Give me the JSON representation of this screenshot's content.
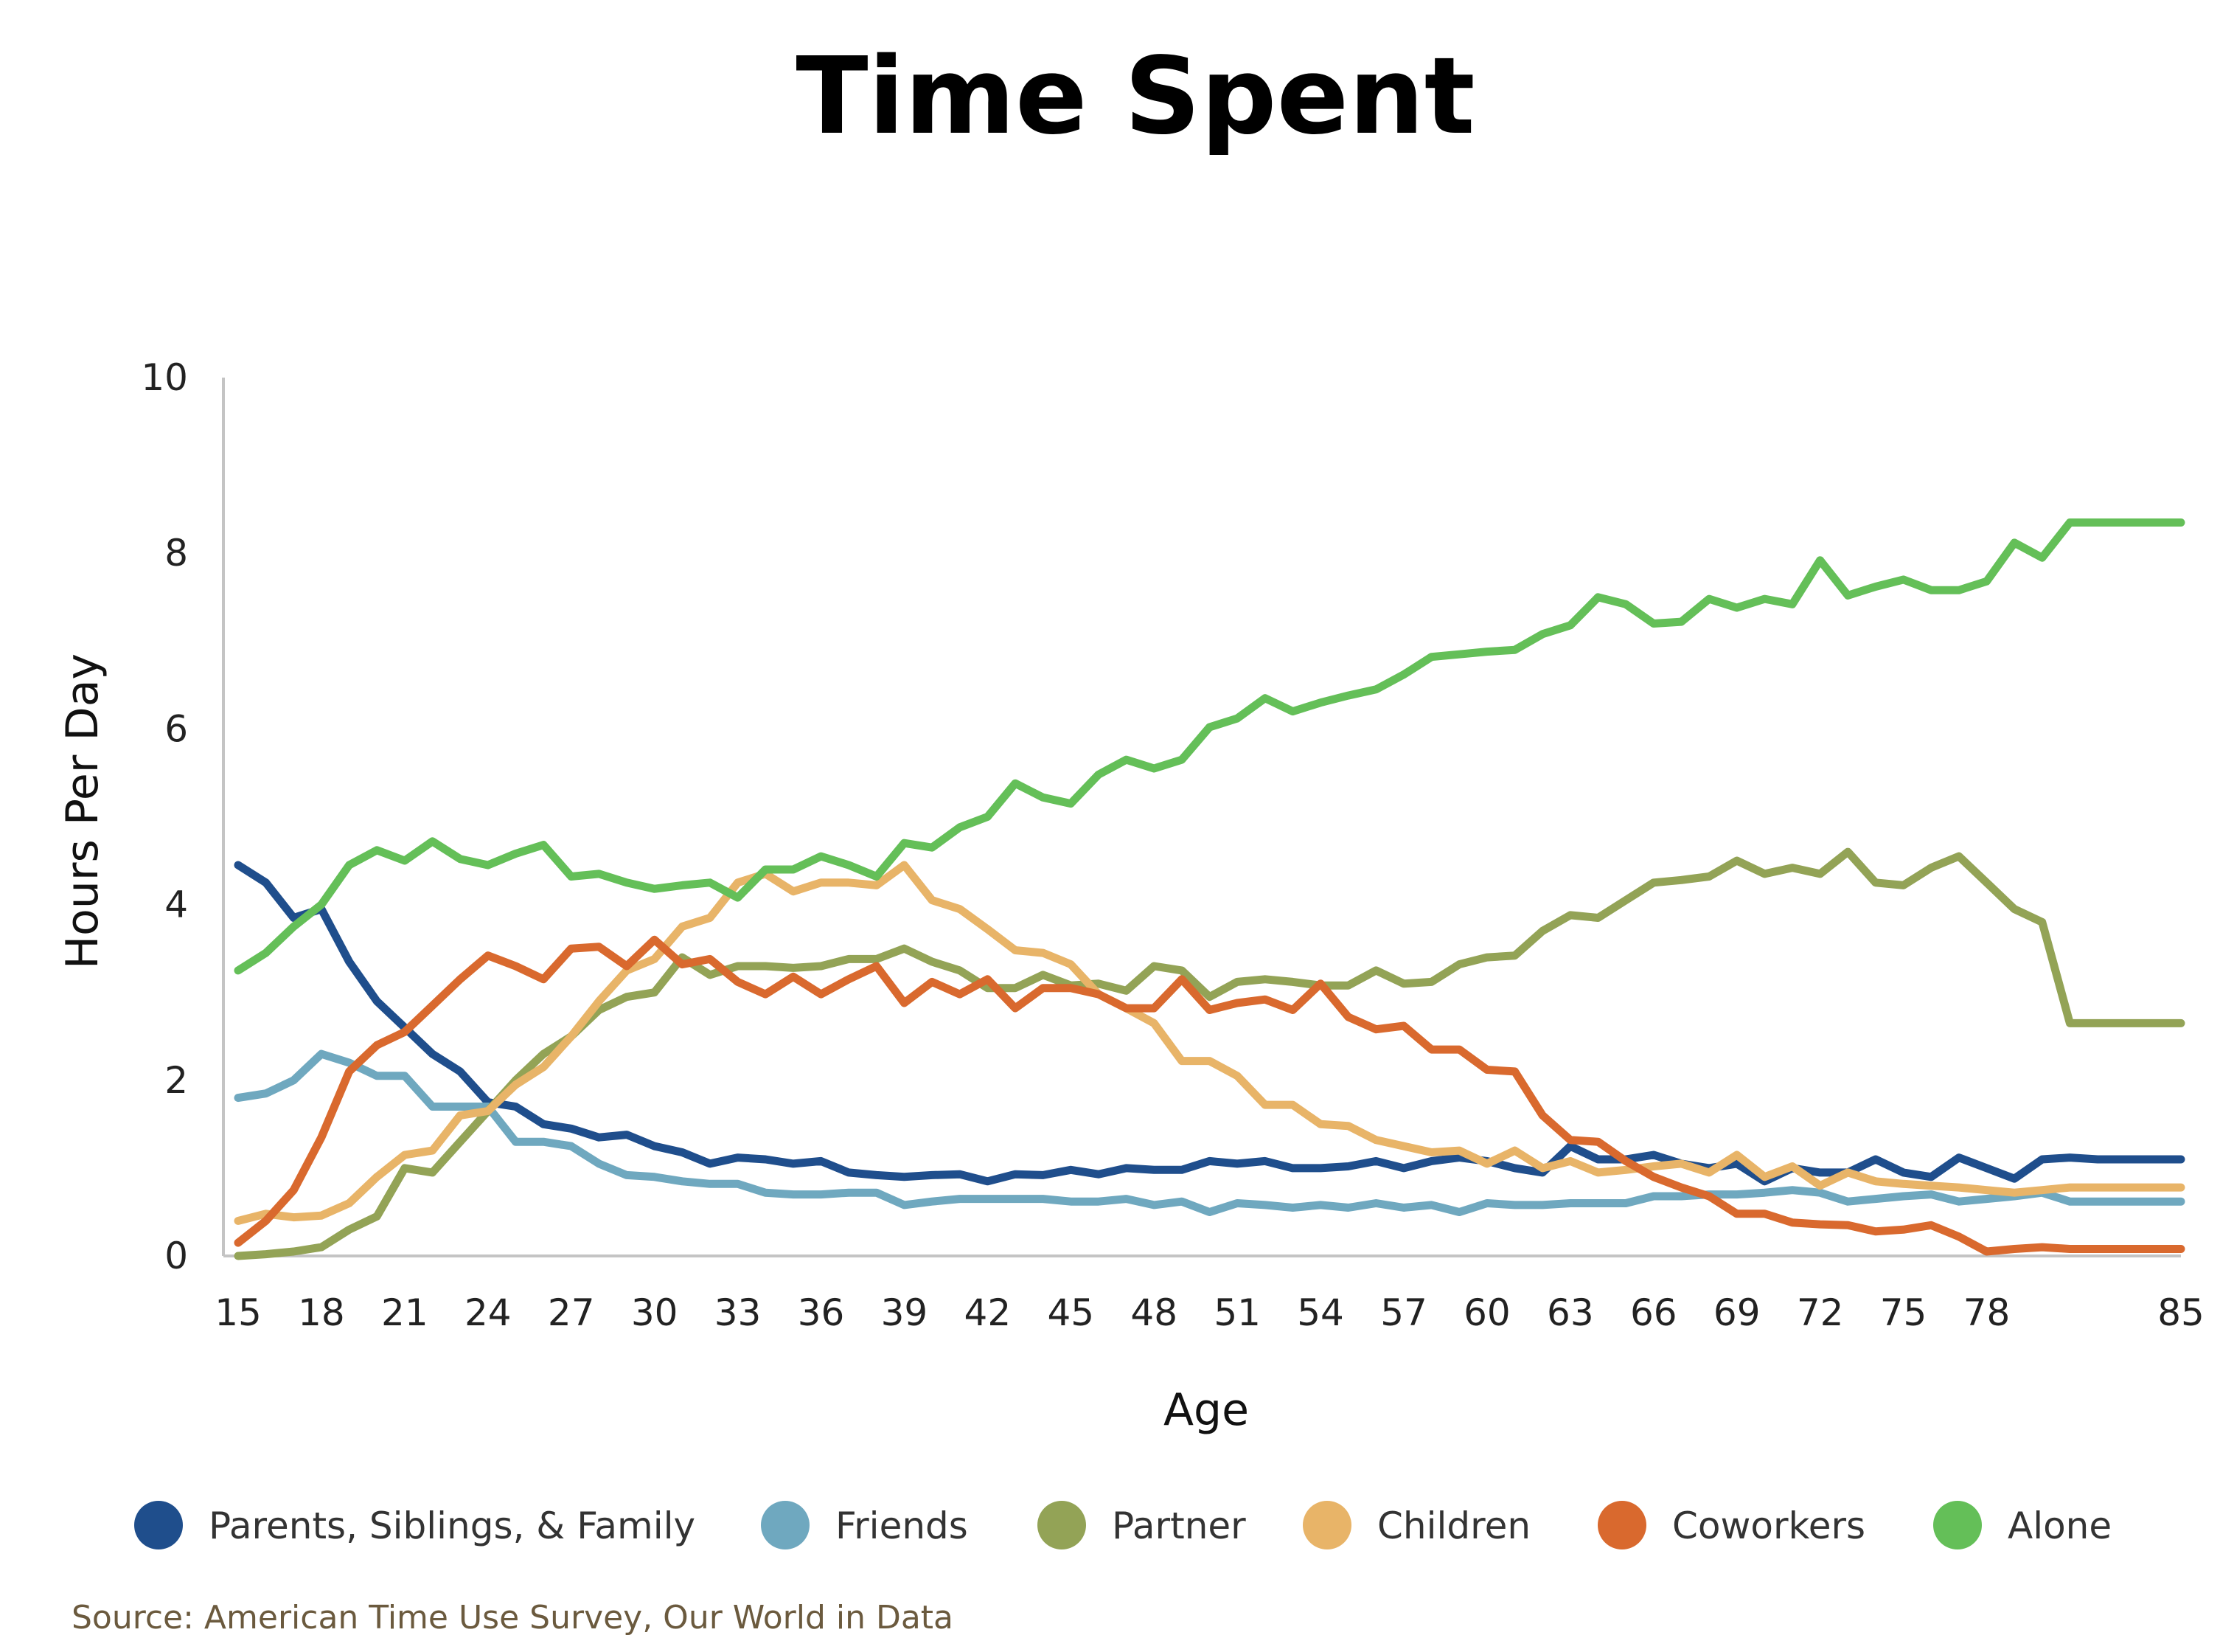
{
  "chart_data": {
    "type": "line",
    "title": "Time Spent",
    "xlabel": "Age",
    "ylabel": "Hours Per Day",
    "xlim": [
      15,
      85
    ],
    "ylim": [
      0,
      10
    ],
    "x_ticks": [
      15,
      18,
      21,
      24,
      27,
      30,
      33,
      36,
      39,
      42,
      45,
      48,
      51,
      54,
      57,
      60,
      63,
      66,
      69,
      72,
      75,
      78,
      85
    ],
    "y_ticks": [
      0,
      2,
      4,
      6,
      8,
      10
    ],
    "grid": false,
    "legend_position": "bottom",
    "x": [
      15,
      16,
      17,
      18,
      19,
      20,
      21,
      22,
      23,
      24,
      25,
      26,
      27,
      28,
      29,
      30,
      31,
      32,
      33,
      34,
      35,
      36,
      37,
      38,
      39,
      40,
      41,
      42,
      43,
      44,
      45,
      46,
      47,
      48,
      49,
      50,
      51,
      52,
      53,
      54,
      55,
      56,
      57,
      58,
      59,
      60,
      61,
      62,
      63,
      64,
      65,
      66,
      67,
      68,
      69,
      70,
      71,
      72,
      73,
      74,
      75,
      76,
      77,
      78,
      79,
      80,
      81,
      82,
      83,
      84,
      85
    ],
    "series": [
      {
        "name": "Parents, Siblings, & Family",
        "color": "#1f4e8c",
        "values": [
          4.45,
          4.25,
          3.85,
          3.95,
          3.35,
          2.9,
          2.6,
          2.3,
          2.1,
          1.75,
          1.7,
          1.5,
          1.45,
          1.35,
          1.38,
          1.25,
          1.18,
          1.05,
          1.12,
          1.1,
          1.05,
          1.08,
          0.95,
          0.92,
          0.9,
          0.92,
          0.93,
          0.85,
          0.93,
          0.92,
          0.98,
          0.93,
          1.0,
          0.98,
          0.98,
          1.08,
          1.05,
          1.08,
          1.0,
          1.0,
          1.02,
          1.08,
          1.0,
          1.08,
          1.12,
          1.08,
          1.0,
          0.95,
          1.25,
          1.1,
          1.1,
          1.15,
          1.05,
          1.0,
          1.05,
          0.85,
          1.0,
          0.95,
          0.95,
          1.1,
          0.95,
          0.9,
          1.12,
          1.0,
          0.88,
          1.1,
          1.12,
          1.1,
          1.1,
          1.1,
          1.1
        ]
      },
      {
        "name": "Friends",
        "color": "#6fa8bf",
        "values": [
          1.8,
          1.85,
          2.0,
          2.3,
          2.2,
          2.05,
          2.05,
          1.7,
          1.7,
          1.7,
          1.3,
          1.3,
          1.25,
          1.05,
          0.92,
          0.9,
          0.85,
          0.82,
          0.82,
          0.72,
          0.7,
          0.7,
          0.72,
          0.72,
          0.58,
          0.62,
          0.65,
          0.65,
          0.65,
          0.65,
          0.62,
          0.62,
          0.65,
          0.58,
          0.62,
          0.5,
          0.6,
          0.58,
          0.55,
          0.58,
          0.55,
          0.6,
          0.55,
          0.58,
          0.5,
          0.6,
          0.58,
          0.58,
          0.6,
          0.6,
          0.6,
          0.68,
          0.68,
          0.7,
          0.7,
          0.72,
          0.75,
          0.72,
          0.62,
          0.65,
          0.68,
          0.7,
          0.62,
          0.65,
          0.68,
          0.72,
          0.62,
          0.62,
          0.62,
          0.62,
          0.62
        ]
      },
      {
        "name": "Partner",
        "color": "#93a356",
        "values": [
          0.0,
          0.02,
          0.05,
          0.1,
          0.3,
          0.45,
          1.0,
          0.95,
          1.3,
          1.65,
          2.0,
          2.3,
          2.5,
          2.8,
          2.95,
          3.0,
          3.4,
          3.2,
          3.3,
          3.3,
          3.28,
          3.3,
          3.38,
          3.38,
          3.5,
          3.35,
          3.25,
          3.05,
          3.05,
          3.2,
          3.08,
          3.1,
          3.02,
          3.3,
          3.25,
          2.95,
          3.12,
          3.15,
          3.12,
          3.08,
          3.08,
          3.25,
          3.1,
          3.12,
          3.32,
          3.4,
          3.42,
          3.7,
          3.88,
          3.85,
          4.05,
          4.25,
          4.28,
          4.32,
          4.5,
          4.35,
          4.42,
          4.35,
          4.6,
          4.25,
          4.22,
          4.42,
          4.55,
          4.25,
          3.95,
          3.8,
          2.65,
          2.65,
          2.65,
          2.65,
          2.65
        ]
      },
      {
        "name": "Children",
        "color": "#e8b468",
        "values": [
          0.4,
          0.48,
          0.44,
          0.46,
          0.6,
          0.9,
          1.15,
          1.2,
          1.6,
          1.65,
          1.95,
          2.15,
          2.5,
          2.9,
          3.25,
          3.38,
          3.75,
          3.85,
          4.25,
          4.35,
          4.15,
          4.25,
          4.25,
          4.22,
          4.45,
          4.05,
          3.95,
          3.72,
          3.48,
          3.45,
          3.32,
          2.98,
          2.82,
          2.65,
          2.22,
          2.22,
          2.05,
          1.72,
          1.72,
          1.5,
          1.48,
          1.32,
          1.25,
          1.18,
          1.2,
          1.05,
          1.2,
          1.0,
          1.08,
          0.95,
          0.98,
          1.02,
          1.05,
          0.95,
          1.15,
          0.9,
          1.02,
          0.8,
          0.95,
          0.85,
          0.82,
          0.8,
          0.78,
          0.75,
          0.72,
          0.75,
          0.78,
          0.78,
          0.78,
          0.78,
          0.78
        ]
      },
      {
        "name": "Coworkers",
        "color": "#d9692e",
        "values": [
          0.15,
          0.4,
          0.75,
          1.35,
          2.1,
          2.4,
          2.55,
          2.85,
          3.15,
          3.42,
          3.3,
          3.15,
          3.5,
          3.52,
          3.3,
          3.6,
          3.32,
          3.38,
          3.12,
          2.98,
          3.18,
          2.98,
          3.15,
          3.3,
          2.88,
          3.12,
          2.98,
          3.15,
          2.82,
          3.05,
          3.05,
          2.98,
          2.82,
          2.82,
          3.15,
          2.8,
          2.88,
          2.92,
          2.8,
          3.1,
          2.72,
          2.58,
          2.62,
          2.35,
          2.35,
          2.12,
          2.1,
          1.6,
          1.32,
          1.3,
          1.08,
          0.9,
          0.78,
          0.68,
          0.48,
          0.48,
          0.38,
          0.36,
          0.35,
          0.28,
          0.3,
          0.35,
          0.22,
          0.05,
          0.08,
          0.1,
          0.08,
          0.08,
          0.08,
          0.08,
          0.08
        ]
      },
      {
        "name": "Alone",
        "color": "#64bf58",
        "values": [
          3.25,
          3.45,
          3.75,
          4.0,
          4.45,
          4.62,
          4.5,
          4.72,
          4.52,
          4.45,
          4.58,
          4.68,
          4.32,
          4.35,
          4.25,
          4.18,
          4.22,
          4.25,
          4.08,
          4.4,
          4.4,
          4.55,
          4.45,
          4.32,
          4.7,
          4.65,
          4.88,
          5.0,
          5.38,
          5.22,
          5.15,
          5.48,
          5.65,
          5.55,
          5.65,
          6.02,
          6.12,
          6.35,
          6.2,
          6.3,
          6.38,
          6.45,
          6.62,
          6.82,
          6.85,
          6.88,
          6.9,
          7.08,
          7.18,
          7.5,
          7.42,
          7.2,
          7.22,
          7.48,
          7.38,
          7.48,
          7.42,
          7.92,
          7.52,
          7.62,
          7.7,
          7.58,
          7.58,
          7.68,
          8.12,
          7.95,
          8.35,
          8.35,
          8.35,
          8.35,
          8.35
        ]
      }
    ]
  },
  "source_note": "Source: American Time Use Survey, Our World in Data"
}
